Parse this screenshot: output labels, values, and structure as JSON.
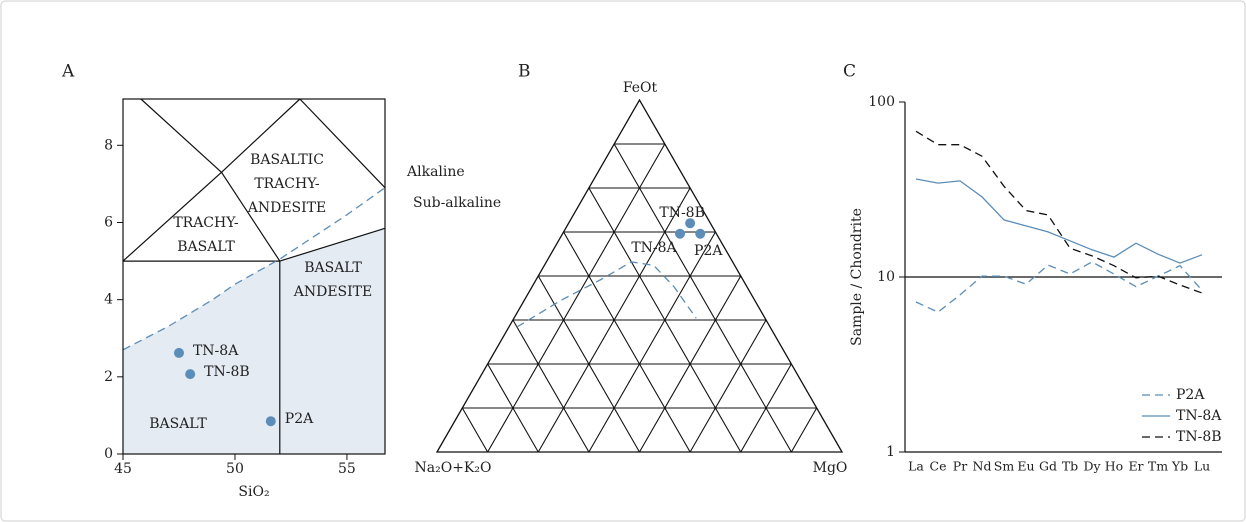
{
  "chart_data": [
    {
      "type": "tas",
      "panel_label": "A",
      "x_label": "SiO₂",
      "xlim": [
        45,
        56.7
      ],
      "ylim": [
        0,
        9.2
      ],
      "xticks": [
        45,
        50,
        55
      ],
      "yticks": [
        0,
        2,
        4,
        6,
        8
      ],
      "color": "#5b8db8",
      "shading_color": "#e4ebf2",
      "fields": [
        {
          "lines": [
            "BASALT"
          ]
        },
        {
          "lines": [
            "TRACHY-",
            "BASALT"
          ]
        },
        {
          "lines": [
            "BASALTIC",
            "TRACHY-",
            "ANDESITE"
          ]
        },
        {
          "lines": [
            "BASALT",
            "ANDESITE"
          ]
        }
      ],
      "boundaries": [
        {
          "x": [
            45,
            52
          ],
          "y": [
            5,
            5
          ]
        },
        {
          "x": [
            52,
            52
          ],
          "y": [
            0,
            5
          ]
        },
        {
          "x": [
            52,
            56.7
          ],
          "y": [
            5,
            5.85
          ]
        },
        {
          "x": [
            45,
            49.4,
            52
          ],
          "y": [
            5,
            7.3,
            5
          ]
        },
        {
          "x": [
            45.8,
            49.4,
            52.9
          ],
          "y": [
            9.2,
            7.3,
            9.2
          ]
        },
        {
          "x": [
            52.9,
            56.7
          ],
          "y": [
            9.2,
            6.9
          ]
        }
      ],
      "divide": {
        "x": [
          45,
          47,
          49,
          50,
          52,
          55,
          56.7
        ],
        "y": [
          2.7,
          3.3,
          4.0,
          4.4,
          5.05,
          6.2,
          6.9
        ]
      },
      "series": [
        {
          "name": "TN-8A",
          "x": [
            47.5
          ],
          "y": [
            2.62
          ]
        },
        {
          "name": "TN-8B",
          "x": [
            48
          ],
          "y": [
            2.07
          ]
        },
        {
          "name": "P2A",
          "x": [
            51.6
          ],
          "y": [
            0.85
          ]
        }
      ]
    },
    {
      "type": "ternary",
      "panel_label": "B",
      "apex_labels": {
        "top": "FeOt",
        "left": "Na₂O+K₂O",
        "right": "MgO"
      },
      "ticks": [
        12.5,
        25,
        37.5,
        50,
        62.5,
        75,
        87.5
      ],
      "region_labels": [
        "Alkaline",
        "Sub-alkaline"
      ],
      "color": "#5b8db8",
      "divide": {
        "feot": [
          35.5,
          43,
          49,
          54,
          53,
          47,
          38
        ],
        "mgo": [
          2,
          9,
          16,
          21,
          27,
          35,
          45
        ]
      },
      "series": [
        {
          "name": "TN-8B",
          "feot": [
            65
          ],
          "mgo": [
            30
          ]
        },
        {
          "name": "TN-8A",
          "feot": [
            62
          ],
          "mgo": [
            29
          ]
        },
        {
          "name": "P2A",
          "feot": [
            62
          ],
          "mgo": [
            34
          ]
        }
      ]
    },
    {
      "type": "line",
      "panel_label": "C",
      "y_label": "Sample / Chondrite",
      "log_y": true,
      "ylim": [
        1,
        100
      ],
      "yticks": [
        1,
        10,
        100
      ],
      "reference_line": 10,
      "legend": "lower right",
      "categories": [
        "La",
        "Ce",
        "Pr",
        "Nd",
        "Sm",
        "Eu",
        "Gd",
        "Tb",
        "Dy",
        "Ho",
        "Er",
        "Tm",
        "Yb",
        "Lu"
      ],
      "series": [
        {
          "name": "P2A",
          "color": "#5b8db8",
          "dashed": true,
          "values": [
            7.2,
            6.3,
            7.9,
            10.1,
            10.1,
            9.1,
            11.7,
            10.4,
            12.2,
            10.4,
            8.8,
            10.1,
            11.6,
            8.4
          ]
        },
        {
          "name": "TN-8A",
          "color": "#5b8db8",
          "dashed": false,
          "values": [
            36.3,
            34.4,
            35.4,
            28.7,
            21.2,
            19.6,
            18.1,
            16.1,
            14.3,
            13.0,
            15.6,
            13.5,
            12.0,
            13.4
          ]
        },
        {
          "name": "TN-8B",
          "color": "#111111",
          "dashed": true,
          "values": [
            68,
            57,
            57,
            49,
            33,
            24,
            22.6,
            14.6,
            13.2,
            11.6,
            9.9,
            10.1,
            9.0,
            8.1
          ]
        }
      ]
    }
  ]
}
